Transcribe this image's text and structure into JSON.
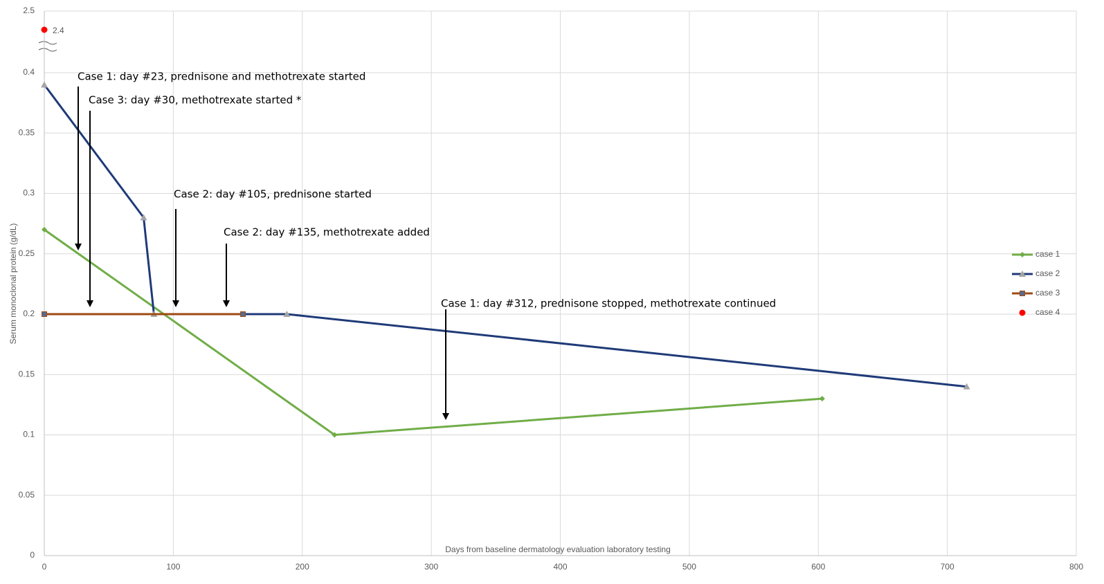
{
  "chart_data": {
    "type": "line",
    "x_label": "Days from baseline dermatology evaluation laboratory testing",
    "y_label": "Serum monoclonal protein  (g/dL)",
    "xlim": [
      0,
      800
    ],
    "xticks": [
      0,
      100,
      200,
      300,
      400,
      500,
      600,
      700,
      800
    ],
    "ylim": [
      0,
      0.4
    ],
    "yticks": [
      0,
      0.05,
      0.1,
      0.15,
      0.2,
      0.25,
      0.3,
      0.35,
      0.4
    ],
    "y_upper_lim": [
      2.3,
      2.5
    ],
    "y_upper_ticks": [
      2.5
    ],
    "grid": true,
    "legend": "right",
    "series": [
      {
        "name": "case 1",
        "color": "#70ad47",
        "marker": "diamond",
        "x": [
          0,
          225,
          603
        ],
        "values": [
          0.27,
          0.1,
          0.13
        ]
      },
      {
        "name": "case 2",
        "color": "#1f3a78",
        "marker": "triangle",
        "x": [
          0,
          77,
          85,
          188,
          715
        ],
        "values": [
          0.39,
          0.28,
          0.2,
          0.2,
          0.14
        ]
      },
      {
        "name": "case 3",
        "color": "#9e4a14",
        "marker": "square",
        "x": [
          0,
          154
        ],
        "values": [
          0.2,
          0.2
        ]
      },
      {
        "name": "case 4",
        "color": "#ff0000",
        "marker": "circle",
        "x": [
          0
        ],
        "values": [
          2.4
        ],
        "value_labels": [
          "2.4"
        ]
      }
    ],
    "annotations": [
      "Case 1: day #23, prednisone and methotrexate started",
      "Case 3: day #30, methotrexate started *",
      "Case 2: day #105, prednisone started",
      "Case 2: day #135, methotrexate added",
      "Case 1: day #312, prednisone stopped, methotrexate continued"
    ]
  }
}
